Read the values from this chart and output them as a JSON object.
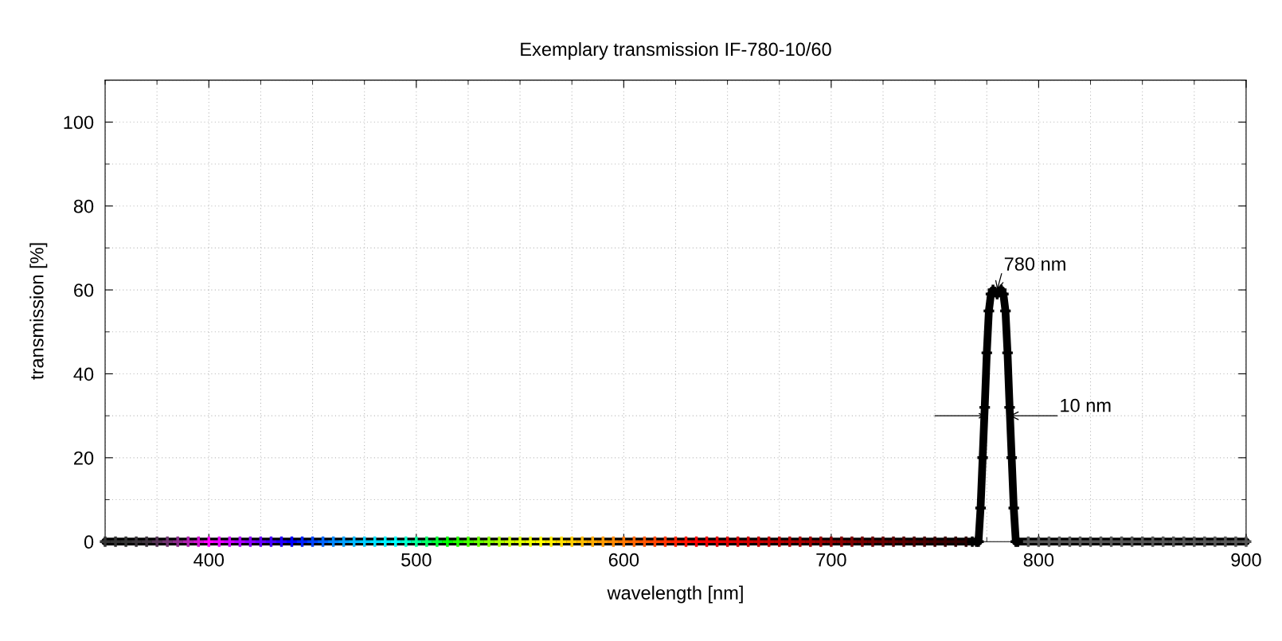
{
  "chart_data": {
    "type": "line",
    "title": "Exemplary transmission IF-780-10/60",
    "xlabel": "wavelength [nm]",
    "ylabel": "transmission [%]",
    "xlim": [
      350,
      900
    ],
    "xticks": [
      400,
      500,
      600,
      700,
      800,
      900
    ],
    "ylim": [
      0,
      110
    ],
    "yticks": [
      0,
      20,
      40,
      60,
      80,
      100
    ],
    "grid": true,
    "marker": "cross",
    "annotations": [
      {
        "text": "780 nm",
        "x": 780,
        "y": 60
      },
      {
        "text": "10 nm",
        "x": 785,
        "y": 30
      }
    ],
    "series": [
      {
        "color": "#000000",
        "x": [
          350,
          355,
          360,
          365,
          370,
          375,
          380,
          385,
          390,
          395,
          400,
          405,
          410,
          415,
          420,
          425,
          430,
          435,
          440,
          445,
          450,
          455,
          460,
          465,
          470,
          475,
          480,
          485,
          490,
          495,
          500,
          505,
          510,
          515,
          520,
          525,
          530,
          535,
          540,
          545,
          550,
          555,
          560,
          565,
          570,
          575,
          580,
          585,
          590,
          595,
          600,
          605,
          610,
          615,
          620,
          625,
          630,
          635,
          640,
          645,
          650,
          655,
          660,
          665,
          670,
          675,
          680,
          685,
          690,
          695,
          700,
          705,
          710,
          715,
          720,
          725,
          730,
          735,
          740,
          745,
          750,
          755,
          760,
          765,
          768,
          770,
          771,
          772,
          773,
          774,
          775,
          776,
          777,
          778,
          779,
          780,
          781,
          782,
          783,
          784,
          785,
          786,
          787,
          788,
          789,
          790,
          795,
          800,
          805,
          810,
          815,
          820,
          825,
          830,
          835,
          840,
          845,
          850,
          855,
          860,
          865,
          870,
          875,
          880,
          885,
          890,
          895,
          900
        ],
        "values": [
          0,
          0,
          0,
          0,
          0,
          0,
          0,
          0,
          0,
          0,
          0,
          0,
          0,
          0,
          0,
          0,
          0,
          0,
          0,
          0,
          0,
          0,
          0,
          0,
          0,
          0,
          0,
          0,
          0,
          0,
          0,
          0,
          0,
          0,
          0,
          0,
          0,
          0,
          0,
          0,
          0,
          0,
          0,
          0,
          0,
          0,
          0,
          0,
          0,
          0,
          0,
          0,
          0,
          0,
          0,
          0,
          0,
          0,
          0,
          0,
          0,
          0,
          0,
          0,
          0,
          0,
          0,
          0,
          0,
          0,
          0,
          0,
          0,
          0,
          0,
          0,
          0,
          0,
          0,
          0,
          0,
          0,
          0,
          0,
          0,
          0,
          0,
          8,
          20,
          32,
          45,
          55,
          59,
          60,
          59.5,
          59,
          59.5,
          60,
          59,
          55,
          45,
          32,
          20,
          8,
          0,
          0,
          0,
          0,
          0,
          0,
          0,
          0,
          0,
          0,
          0,
          0,
          0,
          0,
          0,
          0,
          0,
          0,
          0,
          0,
          0,
          0,
          0,
          0
        ],
        "colors": [
          "#333333",
          "#333333",
          "#333333",
          "#383338",
          "#3d333d",
          "#553355",
          "#703370",
          "#8c2a8c",
          "#b020b0",
          "#d010d0",
          "#ff00ff",
          "#e800ff",
          "#cc00ff",
          "#aa00ff",
          "#8800ff",
          "#6600ff",
          "#4400ff",
          "#2200ff",
          "#0000ff",
          "#0022ff",
          "#0044ff",
          "#0066ff",
          "#0088ff",
          "#00a0ff",
          "#00b8ff",
          "#00ccff",
          "#00e0ff",
          "#00f0ff",
          "#00ffff",
          "#00ffcc",
          "#00ff99",
          "#00ff66",
          "#00ff33",
          "#00ff00",
          "#22ff00",
          "#44ff00",
          "#66ff00",
          "#88ff00",
          "#aaff00",
          "#ccff00",
          "#ddff00",
          "#eeff00",
          "#ffff00",
          "#ffee00",
          "#ffdd00",
          "#ffcc00",
          "#ffbb00",
          "#ffaa00",
          "#ff9900",
          "#ff8800",
          "#ff7700",
          "#ff6600",
          "#ff5500",
          "#ff4400",
          "#ff3300",
          "#ff2200",
          "#ff1100",
          "#ff0000",
          "#f00000",
          "#e80000",
          "#e00000",
          "#d80000",
          "#d00000",
          "#c80000",
          "#c00000",
          "#b80000",
          "#b00000",
          "#a80000",
          "#a00000",
          "#980000",
          "#900000",
          "#880000",
          "#800000",
          "#780000",
          "#700000",
          "#680000",
          "#600000",
          "#580000",
          "#500000",
          "#480000",
          "#400000",
          "#380000",
          "#300000",
          "#280000",
          "#000000",
          "#000000",
          "#000000",
          "#000000",
          "#000000",
          "#000000",
          "#000000",
          "#000000",
          "#000000",
          "#000000",
          "#000000",
          "#000000",
          "#000000",
          "#000000",
          "#000000",
          "#000000",
          "#000000",
          "#000000",
          "#000000",
          "#000000",
          "#000000",
          "#000000",
          "#555555",
          "#555555",
          "#555555",
          "#555555",
          "#555555",
          "#555555",
          "#555555",
          "#555555",
          "#555555",
          "#555555",
          "#555555",
          "#555555",
          "#555555",
          "#555555",
          "#555555",
          "#555555",
          "#555555",
          "#555555",
          "#555555",
          "#555555",
          "#555555",
          "#555555"
        ]
      }
    ]
  }
}
